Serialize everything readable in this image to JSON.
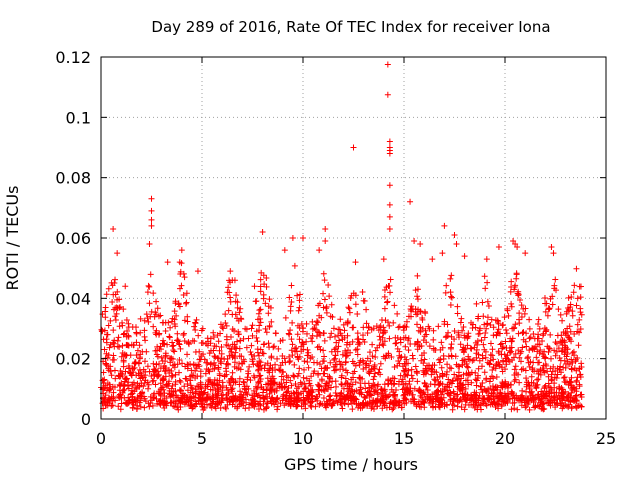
{
  "chart_data": {
    "type": "scatter",
    "title": "Day 289 of 2016, Rate Of TEC Index for receiver Iona",
    "xlabel": "GPS time / hours",
    "ylabel": "ROTI / TECUs",
    "xlim": [
      0,
      25
    ],
    "ylim": [
      0,
      0.12
    ],
    "xticks": [
      "0",
      "5",
      "10",
      "15",
      "20",
      "25"
    ],
    "xtick_values": [
      0,
      5,
      10,
      15,
      20,
      25
    ],
    "yticks": [
      "0",
      "0.02",
      "0.04",
      "0.06",
      "0.08",
      "0.1",
      "0.12"
    ],
    "ytick_values": [
      0,
      0.02,
      0.04,
      0.06,
      0.08,
      0.1,
      0.12
    ],
    "grid": true,
    "marker": "+",
    "color": "#ff0000",
    "series": [
      {
        "name": "ROTI",
        "description": "Dense scatter of ROTI values from 0.0 to 23.8 hours; most values between 0.005 and 0.03 TECU/min with periodic spikes to ~0.05; notable outliers listed below.",
        "points": [
          [
            0.6,
            0.063
          ],
          [
            0.8,
            0.055
          ],
          [
            1.2,
            0.044
          ],
          [
            2.5,
            0.073
          ],
          [
            2.5,
            0.069
          ],
          [
            2.5,
            0.066
          ],
          [
            2.5,
            0.064
          ],
          [
            2.4,
            0.058
          ],
          [
            3.3,
            0.052
          ],
          [
            3.9,
            0.052
          ],
          [
            4.0,
            0.056
          ],
          [
            4.8,
            0.049
          ],
          [
            6.4,
            0.049
          ],
          [
            6.5,
            0.046
          ],
          [
            7.6,
            0.044
          ],
          [
            8.0,
            0.062
          ],
          [
            9.1,
            0.056
          ],
          [
            9.5,
            0.06
          ],
          [
            10.0,
            0.06
          ],
          [
            10.8,
            0.056
          ],
          [
            11.1,
            0.063
          ],
          [
            11.1,
            0.059
          ],
          [
            12.5,
            0.09
          ],
          [
            12.6,
            0.052
          ],
          [
            14.2,
            0.1175
          ],
          [
            14.2,
            0.1075
          ],
          [
            14.3,
            0.092
          ],
          [
            14.3,
            0.09
          ],
          [
            14.3,
            0.089
          ],
          [
            14.3,
            0.088
          ],
          [
            14.3,
            0.0775
          ],
          [
            14.3,
            0.071
          ],
          [
            14.3,
            0.067
          ],
          [
            14.3,
            0.063
          ],
          [
            14.0,
            0.053
          ],
          [
            15.3,
            0.072
          ],
          [
            15.5,
            0.059
          ],
          [
            15.8,
            0.058
          ],
          [
            16.4,
            0.053
          ],
          [
            16.9,
            0.055
          ],
          [
            17.0,
            0.064
          ],
          [
            17.5,
            0.061
          ],
          [
            17.6,
            0.058
          ],
          [
            18.0,
            0.054
          ],
          [
            19.1,
            0.053
          ],
          [
            19.7,
            0.057
          ],
          [
            20.4,
            0.059
          ],
          [
            20.5,
            0.058
          ],
          [
            20.6,
            0.057
          ],
          [
            21.0,
            0.055
          ],
          [
            22.3,
            0.057
          ],
          [
            22.4,
            0.055
          ],
          [
            23.4,
            0.042
          ],
          [
            23.6,
            0.04
          ]
        ],
        "dense_band": {
          "x_range": [
            0.0,
            23.8
          ],
          "y_low": 0.003,
          "y_typical_high": 0.03,
          "y_burst_high": 0.05
        }
      }
    ]
  }
}
